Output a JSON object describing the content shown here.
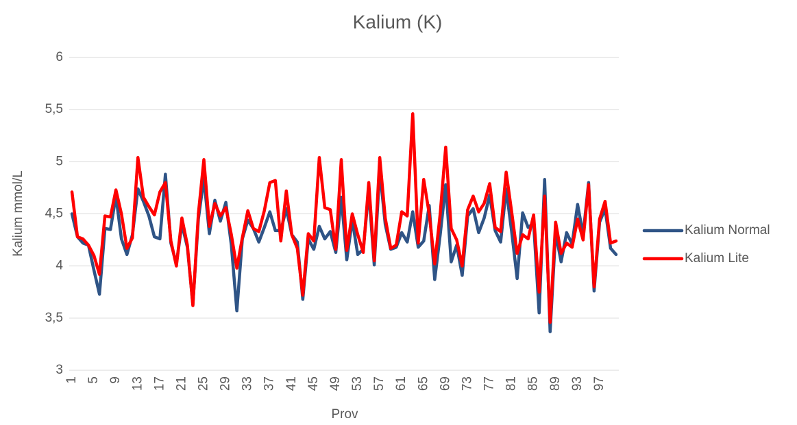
{
  "chart_data": {
    "type": "line",
    "title": "Kalium (K)",
    "x_label": "Prov",
    "y_label": "Kalium mmol/L",
    "categories": [
      1,
      null,
      null,
      null,
      5,
      null,
      null,
      null,
      9,
      null,
      null,
      null,
      13,
      null,
      null,
      null,
      17,
      null,
      null,
      null,
      21,
      null,
      null,
      null,
      25,
      null,
      null,
      null,
      29,
      null,
      null,
      null,
      33,
      null,
      null,
      null,
      37,
      null,
      null,
      null,
      41,
      null,
      null,
      null,
      45,
      null,
      null,
      null,
      49,
      null,
      null,
      null,
      53,
      null,
      null,
      null,
      57,
      null,
      null,
      null,
      61,
      null,
      null,
      null,
      65,
      null,
      null,
      null,
      69,
      null,
      null,
      null,
      73,
      null,
      null,
      null,
      77,
      null,
      null,
      null,
      81,
      null,
      null,
      null,
      85,
      null,
      null,
      null,
      89,
      null,
      null,
      null,
      93,
      null,
      null,
      null,
      97,
      null,
      null,
      null
    ],
    "series": [
      {
        "name": "Kalium Normal",
        "color": "#2f5486",
        "values": [
          4.5,
          4.28,
          4.22,
          4.2,
          3.96,
          3.73,
          4.36,
          4.35,
          4.67,
          4.26,
          4.11,
          4.3,
          4.74,
          4.62,
          4.48,
          4.28,
          4.26,
          4.88,
          4.22,
          4.02,
          4.4,
          4.18,
          3.63,
          4.45,
          4.84,
          4.31,
          4.63,
          4.43,
          4.61,
          4.2,
          3.57,
          4.26,
          4.44,
          4.36,
          4.23,
          4.37,
          4.52,
          4.34,
          4.34,
          4.55,
          4.3,
          4.23,
          3.68,
          4.26,
          4.16,
          4.38,
          4.26,
          4.33,
          4.13,
          4.66,
          4.06,
          4.44,
          4.11,
          4.16,
          4.72,
          4.01,
          4.92,
          4.4,
          4.16,
          4.18,
          4.32,
          4.23,
          4.52,
          4.18,
          4.24,
          4.58,
          3.87,
          4.3,
          4.78,
          4.04,
          4.2,
          3.91,
          4.48,
          4.55,
          4.32,
          4.46,
          4.68,
          4.34,
          4.23,
          4.74,
          4.33,
          3.88,
          4.51,
          4.37,
          4.41,
          3.55,
          4.83,
          3.37,
          4.32,
          4.04,
          4.32,
          4.21,
          4.59,
          4.3,
          4.8,
          3.76,
          4.42,
          4.55,
          4.17,
          4.11
        ]
      },
      {
        "name": "Kalium Lite",
        "color": "#ff0000",
        "values": [
          4.71,
          4.28,
          4.26,
          4.2,
          4.1,
          3.92,
          4.48,
          4.47,
          4.73,
          4.5,
          4.17,
          4.27,
          5.04,
          4.66,
          4.57,
          4.49,
          4.71,
          4.8,
          4.24,
          4.0,
          4.46,
          4.2,
          3.62,
          4.5,
          5.02,
          4.38,
          4.6,
          4.48,
          4.56,
          4.3,
          3.98,
          4.27,
          4.53,
          4.36,
          4.33,
          4.53,
          4.8,
          4.82,
          4.24,
          4.72,
          4.3,
          4.17,
          3.72,
          4.31,
          4.24,
          5.04,
          4.56,
          4.54,
          4.16,
          5.02,
          4.15,
          4.5,
          4.3,
          4.13,
          4.8,
          4.05,
          5.04,
          4.46,
          4.17,
          4.2,
          4.52,
          4.48,
          5.46,
          4.22,
          4.83,
          4.5,
          4.02,
          4.5,
          5.14,
          4.36,
          4.25,
          4.0,
          4.54,
          4.67,
          4.52,
          4.6,
          4.79,
          4.37,
          4.33,
          4.9,
          4.52,
          4.12,
          4.3,
          4.26,
          4.49,
          3.75,
          4.67,
          3.46,
          4.42,
          4.12,
          4.22,
          4.18,
          4.45,
          4.25,
          4.78,
          3.8,
          4.45,
          4.62,
          4.22,
          4.24
        ]
      }
    ],
    "ylim": [
      3,
      6
    ],
    "yticks": [
      3,
      {
        "value": 3.5,
        "label": "3,5"
      },
      4,
      {
        "value": 4.5,
        "label": "4,5"
      },
      5,
      {
        "value": 5.5,
        "label": "5,5"
      },
      6
    ],
    "grid": true,
    "legend": "right"
  }
}
